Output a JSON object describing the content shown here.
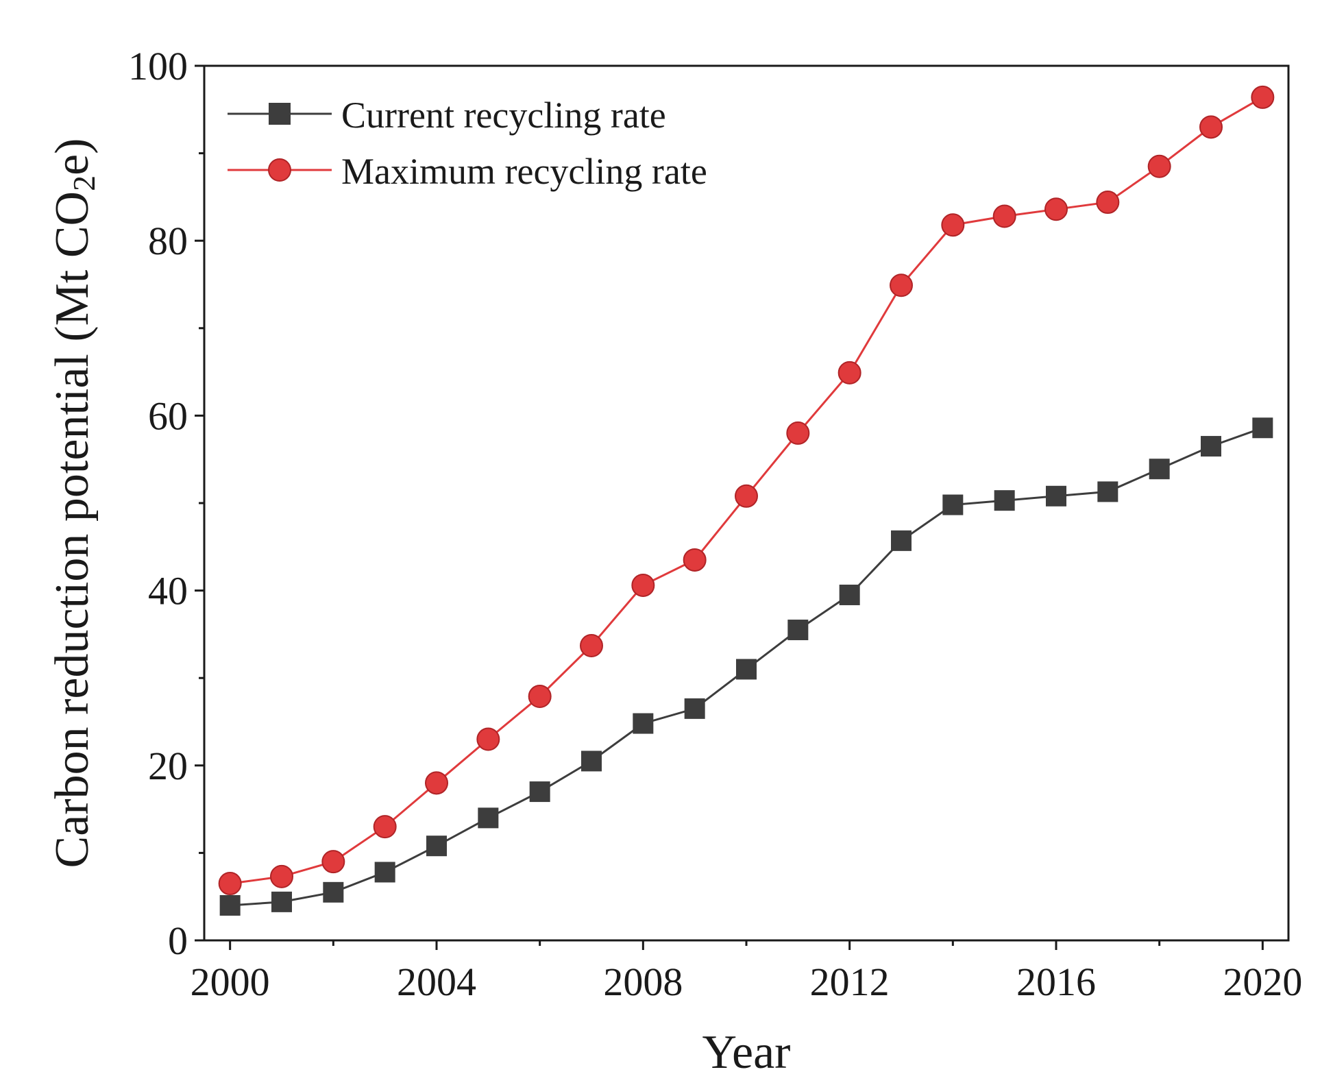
{
  "chart_data": {
    "type": "line",
    "xlabel": "Year",
    "ylabel": "Carbon reduction potential (Mt CO2e)",
    "ylabel_parts": [
      "Carbon reduction potential (Mt CO",
      "2",
      "e)"
    ],
    "xlim": [
      1999.5,
      2020.5
    ],
    "ylim": [
      0,
      100
    ],
    "xticks": [
      2000,
      2004,
      2008,
      2012,
      2016,
      2020
    ],
    "yticks": [
      0,
      20,
      40,
      60,
      80,
      100
    ],
    "legend_position": "top-left",
    "x": [
      2000,
      2001,
      2002,
      2003,
      2004,
      2005,
      2006,
      2007,
      2008,
      2009,
      2010,
      2011,
      2012,
      2013,
      2014,
      2015,
      2016,
      2017,
      2018,
      2019,
      2020
    ],
    "series": [
      {
        "name": "Current recycling rate",
        "marker": "square",
        "color": "#3d3d3d",
        "values": [
          4.0,
          4.4,
          5.5,
          7.8,
          10.8,
          14.0,
          17.0,
          20.5,
          24.8,
          26.5,
          31.0,
          35.5,
          39.5,
          45.7,
          49.8,
          50.3,
          50.8,
          51.3,
          53.9,
          56.5,
          58.6
        ]
      },
      {
        "name": "Maximum recycling rate",
        "marker": "circle",
        "color": "#e03a3c",
        "values": [
          6.5,
          7.3,
          9.0,
          13.0,
          18.0,
          23.0,
          27.9,
          33.7,
          40.6,
          43.5,
          50.8,
          58.0,
          64.9,
          74.9,
          81.8,
          82.8,
          83.6,
          84.4,
          88.5,
          93.0,
          96.4
        ]
      }
    ]
  }
}
